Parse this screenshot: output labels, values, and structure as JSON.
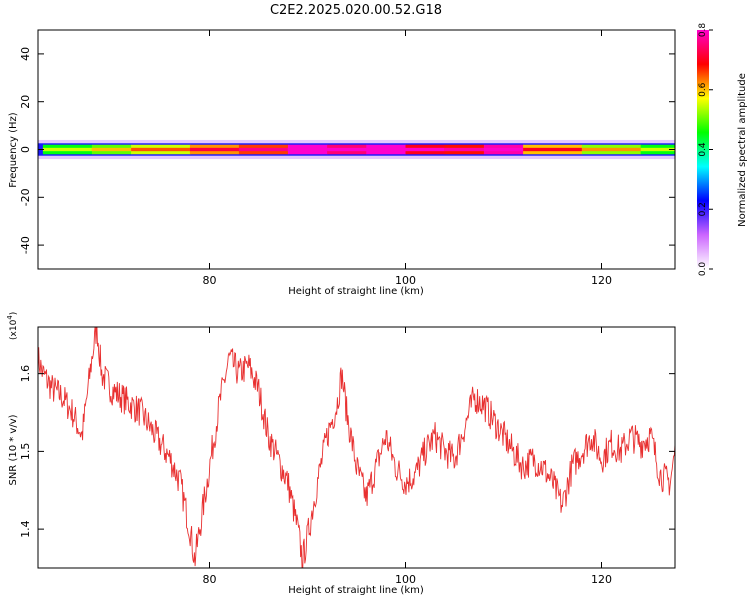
{
  "title": "C2E2.2025.020.00.52.G18",
  "chart_data": [
    {
      "type": "heatmap",
      "xlabel": "Height of straight line (km)",
      "ylabel": "Frequency (Hz)",
      "xlim": [
        62.5,
        127.5
      ],
      "ylim": [
        -50,
        50
      ],
      "x_ticks": [
        80,
        100,
        120
      ],
      "y_ticks": [
        -40,
        -20,
        0,
        20,
        40
      ],
      "grid": false,
      "band": {
        "description_center_hz": 0,
        "core_halfwidth_hz": 2,
        "halo_halfwidth_hz": 4,
        "amplitude_profile": [
          {
            "x": 63,
            "v": 0.45
          },
          {
            "x": 68,
            "v": 0.5
          },
          {
            "x": 72,
            "v": 0.55
          },
          {
            "x": 78,
            "v": 0.62
          },
          {
            "x": 83,
            "v": 0.66
          },
          {
            "x": 88,
            "v": 0.8
          },
          {
            "x": 92,
            "v": 0.75
          },
          {
            "x": 96,
            "v": 0.82
          },
          {
            "x": 100,
            "v": 0.7
          },
          {
            "x": 104,
            "v": 0.68
          },
          {
            "x": 108,
            "v": 0.78
          },
          {
            "x": 112,
            "v": 0.6
          },
          {
            "x": 118,
            "v": 0.52
          },
          {
            "x": 124,
            "v": 0.45
          },
          {
            "x": 127.5,
            "v": 0.4
          }
        ]
      },
      "colorbar": {
        "label": "Normalized spectral amplitude",
        "range": [
          0.0,
          0.8
        ],
        "ticks": [
          "0.0",
          "0.2",
          "0.4",
          "0.6",
          "0.8"
        ],
        "colors": [
          "#ffffff",
          "#cc66ff",
          "#0000ff",
          "#00ffff",
          "#00ff00",
          "#ffff00",
          "#ff0000",
          "#ff00cc"
        ]
      }
    },
    {
      "type": "line",
      "xlabel": "Height of straight line (km)",
      "ylabel": "SNR (10 * v/v)",
      "y_multiplier_label": "(x10",
      "y_multiplier_exp": "4",
      "y_multiplier_close": ")",
      "xlim": [
        62.5,
        127.5
      ],
      "ylim": [
        1.35,
        1.66
      ],
      "x_ticks": [
        80,
        100,
        120
      ],
      "y_ticks": [
        1.4,
        1.5,
        1.6
      ],
      "grid": false,
      "line_color": "#e83030",
      "series": [
        {
          "x": [
            62.5,
            63,
            64,
            65,
            66,
            67,
            68,
            68.5,
            69,
            70,
            71,
            72,
            73,
            74,
            75,
            76,
            77,
            78,
            78.5,
            79,
            80,
            81,
            82,
            83,
            84,
            85,
            86,
            87,
            88,
            89,
            89.5,
            90,
            91,
            92,
            93,
            93.5,
            94,
            95,
            96,
            97,
            98,
            99,
            100,
            101,
            102,
            103,
            104,
            105,
            106,
            107,
            108,
            109,
            110,
            111,
            112,
            113,
            114,
            115,
            116,
            117,
            118,
            119,
            120,
            121,
            122,
            123,
            124,
            125,
            126,
            127,
            127.5
          ],
          "y": [
            1.62,
            1.6,
            1.58,
            1.57,
            1.55,
            1.52,
            1.62,
            1.66,
            1.6,
            1.58,
            1.57,
            1.56,
            1.55,
            1.53,
            1.51,
            1.49,
            1.46,
            1.4,
            1.36,
            1.4,
            1.48,
            1.56,
            1.62,
            1.6,
            1.61,
            1.58,
            1.52,
            1.49,
            1.46,
            1.4,
            1.36,
            1.39,
            1.46,
            1.52,
            1.56,
            1.6,
            1.55,
            1.48,
            1.44,
            1.48,
            1.52,
            1.48,
            1.46,
            1.47,
            1.5,
            1.52,
            1.5,
            1.49,
            1.53,
            1.57,
            1.56,
            1.54,
            1.52,
            1.5,
            1.48,
            1.49,
            1.48,
            1.46,
            1.43,
            1.48,
            1.5,
            1.52,
            1.49,
            1.51,
            1.5,
            1.52,
            1.51,
            1.52,
            1.47,
            1.46,
            1.5
          ]
        }
      ]
    }
  ]
}
